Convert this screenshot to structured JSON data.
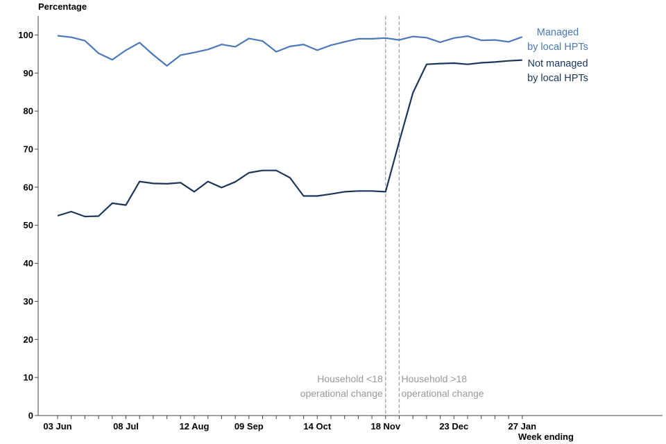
{
  "chart_data": {
    "type": "line",
    "ylabel": "Percentage",
    "xlabel": "Week ending",
    "ylim": [
      0,
      105
    ],
    "yticks": [
      0,
      10,
      20,
      30,
      40,
      50,
      60,
      70,
      80,
      90,
      100
    ],
    "grid": false,
    "x": [
      "03 Jun",
      "10 Jun",
      "17 Jun",
      "24 Jun",
      "01 Jul",
      "08 Jul",
      "15 Jul",
      "22 Jul",
      "29 Jul",
      "05 Aug",
      "12 Aug",
      "19 Aug",
      "26 Aug",
      "02 Sep",
      "09 Sep",
      "16 Sep",
      "23 Sep",
      "30 Sep",
      "07 Oct",
      "14 Oct",
      "21 Oct",
      "28 Oct",
      "04 Nov",
      "11 Nov",
      "18 Nov",
      "25 Nov",
      "02 Dec",
      "09 Dec",
      "16 Dec",
      "23 Dec",
      "30 Dec",
      "06 Jan",
      "13 Jan",
      "20 Jan",
      "27 Jan"
    ],
    "xtick_labels": [
      "03 Jun",
      "08 Jul",
      "12 Aug",
      "09 Sep",
      "14 Oct",
      "18 Nov",
      "23 Dec",
      "27 Jan"
    ],
    "series": [
      {
        "name": "Managed by local HPTs",
        "label_lines": [
          "Managed",
          "by local HPTs"
        ],
        "color": "#4a78b8",
        "values": [
          99.8,
          99.4,
          98.5,
          95.2,
          93.5,
          96.0,
          98.0,
          94.8,
          91.9,
          94.7,
          95.4,
          96.2,
          97.5,
          96.9,
          99.1,
          98.4,
          95.6,
          97.0,
          97.5,
          96.0,
          97.3,
          98.2,
          99.0,
          99.0,
          99.2,
          98.7,
          99.6,
          99.3,
          98.1,
          99.2,
          99.7,
          98.6,
          98.7,
          98.2,
          99.5
        ]
      },
      {
        "name": "Not managed by local HPTs",
        "label_lines": [
          "Not managed",
          "by local HPTs"
        ],
        "color": "#1a3558",
        "values": [
          52.5,
          53.6,
          52.3,
          52.4,
          55.8,
          55.3,
          61.5,
          61.0,
          60.9,
          61.2,
          58.8,
          61.5,
          59.9,
          61.4,
          63.8,
          64.4,
          64.4,
          62.5,
          57.7,
          57.7,
          58.2,
          58.8,
          59.0,
          59.0,
          58.8,
          72.0,
          84.8,
          92.3,
          92.5,
          92.6,
          92.3,
          92.7,
          92.9,
          93.2,
          93.4
        ]
      }
    ],
    "annotations": [
      {
        "at": "18 Nov",
        "lines": [
          "Household <18",
          "operational change"
        ],
        "color": "#999999"
      },
      {
        "at": "25 Nov",
        "lines": [
          "Household >18",
          "operational change"
        ],
        "color": "#999999"
      }
    ]
  }
}
